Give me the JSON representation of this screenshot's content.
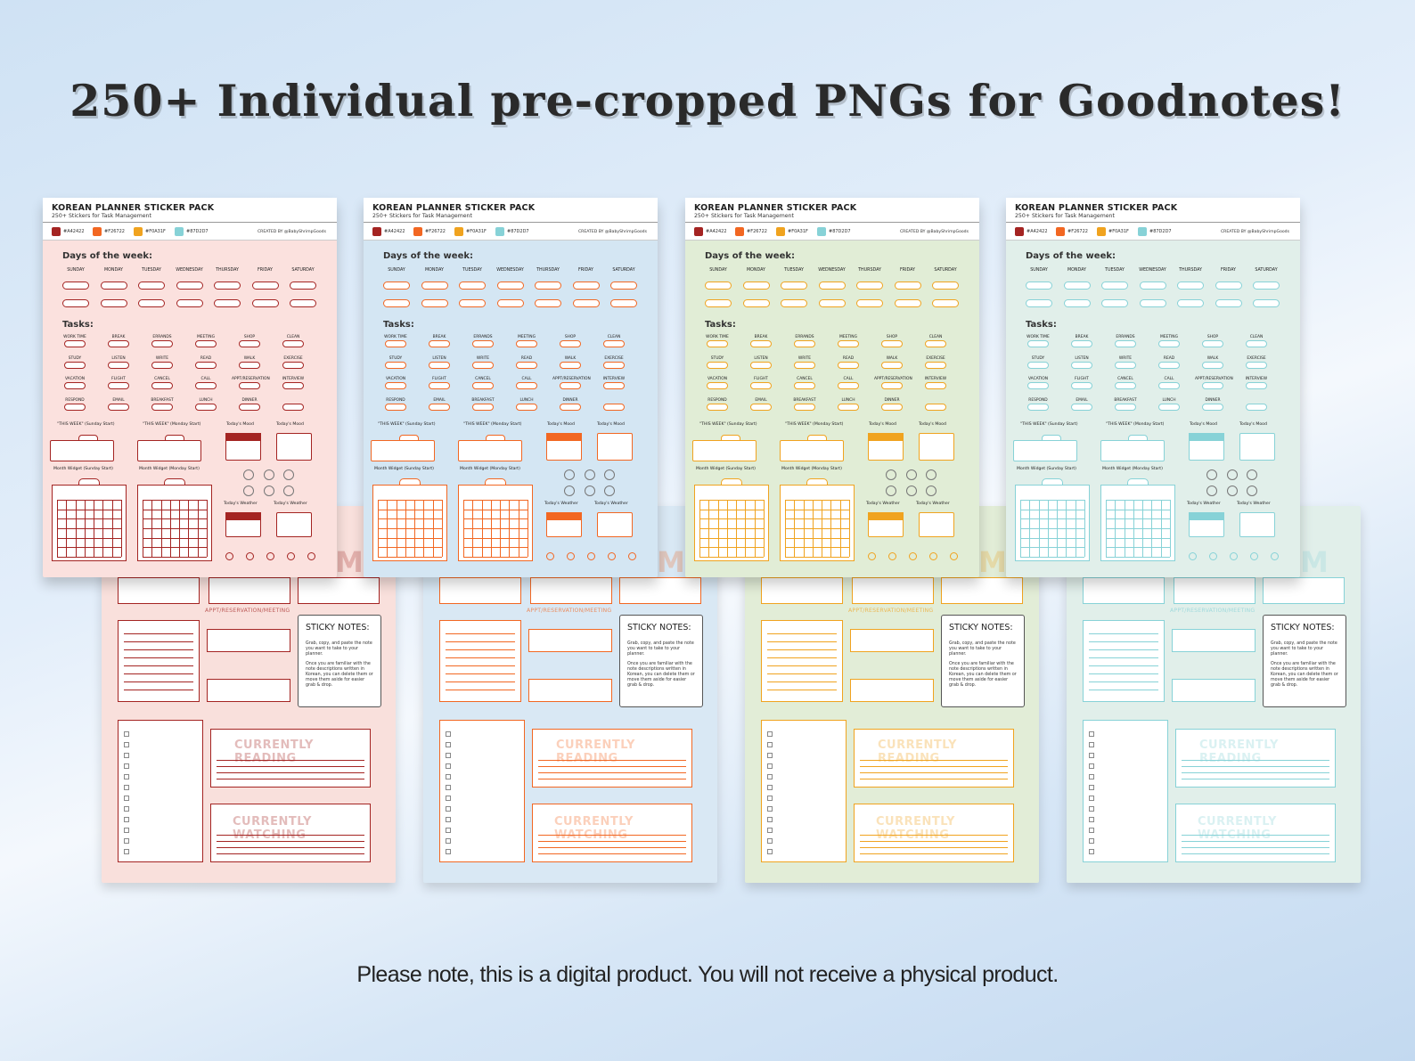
{
  "headline": "250+ Individual pre-cropped PNGs for Goodnotes!",
  "footer_note": "Please note, this is a digital product. You will not receive a physical product.",
  "sheet": {
    "title": "KOREAN PLANNER STICKER PACK",
    "subtitle": "250+ Stickers for Task Management",
    "creator": "CREATED BY @BabyShrimpGoods",
    "days_heading": "Days of the week:",
    "tasks_heading": "Tasks:",
    "days": [
      "SUNDAY",
      "MONDAY",
      "TUESDAY",
      "WEDNESDAY",
      "THURSDAY",
      "FRIDAY",
      "SATURDAY"
    ],
    "task_labels": [
      [
        "WORK TIME",
        "BREAK",
        "ERRANDS",
        "MEETING",
        "SHOP",
        "CLEAN"
      ],
      [
        "STUDY",
        "LISTEN",
        "WRITE",
        "READ",
        "WALK",
        "EXERCISE"
      ],
      [
        "VACATION",
        "FLIGHT",
        "CANCEL",
        "CALL",
        "APPT/RESERVATION",
        "INTERVIEW"
      ],
      [
        "RESPOND",
        "EMAIL",
        "BREAKFAST",
        "LUNCH",
        "DINNER",
        ""
      ]
    ],
    "this_week_sunday": "\"THIS WEEK\" (Sunday Start)",
    "this_week_monday": "\"THIS WEEK\" (Monday Start)",
    "todays_mood": "Today's Mood",
    "month_sunday": "Month Widget (Sunday Start)",
    "month_monday": "Month Widget (Monday Start)",
    "todays_weather": "Today's Weather",
    "sticky_title": "STICKY NOTES:",
    "sticky_p1": "Grab, copy, and paste the note you want to take to your planner.",
    "sticky_p2": "Once you are familiar with the note descriptions written in Korean, you can delete them or move them aside for easier grab & drop.",
    "appt_label": "APPT/RESERVATION/MEETING",
    "currently_reading": "CURRENTLY READING",
    "currently_watching": "CURRENTLY WATCHING"
  },
  "swatches": [
    {
      "hex": "#A42422",
      "label": "#A42422"
    },
    {
      "hex": "#F26722",
      "label": "#F26722"
    },
    {
      "hex": "#F0A31F",
      "label": "#F0A31F"
    },
    {
      "hex": "#87D2D7",
      "label": "#87D2D7"
    }
  ],
  "variants": [
    {
      "name": "red",
      "accent": "#A42422",
      "bg": "#FBE1DE",
      "back_bg": "#F9E0DC"
    },
    {
      "name": "orange",
      "accent": "#F26722",
      "bg": "#D4E6F3",
      "back_bg": "#D9E8F4"
    },
    {
      "name": "yellow",
      "accent": "#F0A31F",
      "bg": "#E1EDD6",
      "back_bg": "#E2EDD7"
    },
    {
      "name": "teal",
      "accent": "#87D2D7",
      "bg": "#E1EFEA",
      "back_bg": "#E1EFEA"
    }
  ]
}
